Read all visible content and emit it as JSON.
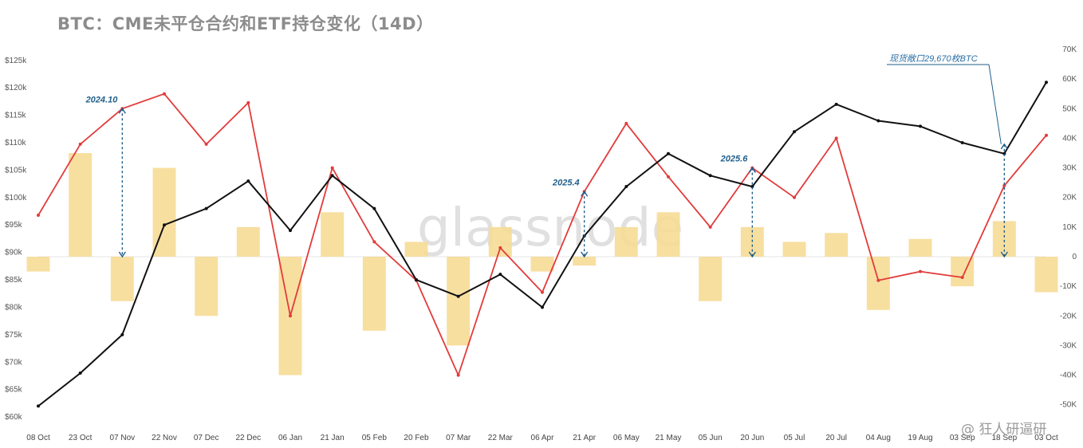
{
  "title": "BTC：CME未平仓合约和ETF持仓变化（14D）",
  "watermark": "glassnode",
  "credit": "@ 狂人研逼研",
  "colors": {
    "price": "#111111",
    "flow": "#e23b3b",
    "bars": "#f6dc96",
    "annotation": "#1f5f8b"
  },
  "chart_data": {
    "type": "line",
    "x_ticks": [
      "08 Oct",
      "23 Oct",
      "07 Nov",
      "22 Nov",
      "07 Dec",
      "22 Dec",
      "06 Jan",
      "21 Jan",
      "05 Feb",
      "20 Feb",
      "07 Mar",
      "22 Mar",
      "06 Apr",
      "21 Apr",
      "06 May",
      "21 May",
      "05 Jun",
      "20 Jun",
      "05 Jul",
      "20 Jul",
      "04 Aug",
      "19 Aug",
      "03 Sep",
      "18 Sep",
      "03 Oct"
    ],
    "y_left": {
      "ticks": [
        "$60k",
        "$65k",
        "$70k",
        "$75k",
        "$80k",
        "$85k",
        "$90k",
        "$95k",
        "$100k",
        "$105k",
        "$110k",
        "$115k",
        "$120k",
        "$125k"
      ],
      "range": [
        59000,
        127000
      ]
    },
    "y_right": {
      "ticks": [
        "-50K",
        "-40K",
        "-30K",
        "-20K",
        "-10K",
        "0",
        "10K",
        "20K",
        "30K",
        "40K",
        "50K",
        "60K",
        "70K"
      ],
      "range": [
        -56000,
        70000
      ]
    },
    "series": [
      {
        "kind": "price",
        "axis": "left",
        "x": [
          0,
          1,
          2,
          3,
          4,
          5,
          6,
          7,
          8,
          9,
          10,
          11,
          12,
          13,
          14,
          15,
          16,
          17,
          18,
          19,
          20,
          21,
          22,
          23,
          24
        ],
        "values": [
          62000,
          68000,
          75000,
          95000,
          98000,
          103000,
          94000,
          104000,
          98000,
          85000,
          82000,
          86000,
          80000,
          93000,
          102000,
          108000,
          104000,
          102000,
          112000,
          117000,
          114000,
          113000,
          110000,
          108000,
          121000
        ]
      },
      {
        "kind": "flow",
        "axis": "right",
        "x": [
          0,
          1,
          2,
          3,
          4,
          5,
          6,
          7,
          8,
          9,
          10,
          11,
          12,
          13,
          14,
          15,
          16,
          17,
          18,
          19,
          20,
          21,
          22,
          23,
          24
        ],
        "values": [
          14000,
          38000,
          50000,
          55000,
          38000,
          52000,
          -20000,
          30000,
          5000,
          -8000,
          -40000,
          3000,
          -12000,
          22000,
          45000,
          27000,
          10000,
          30000,
          20000,
          40000,
          -8000,
          -5000,
          -7000,
          24000,
          41000
        ]
      },
      {
        "kind": "bars",
        "axis": "right",
        "x": [
          0,
          1,
          2,
          3,
          4,
          5,
          6,
          7,
          8,
          9,
          10,
          11,
          12,
          13,
          14,
          15,
          16,
          17,
          18,
          19,
          20,
          21,
          22,
          23,
          24
        ],
        "values": [
          -5000,
          35000,
          -15000,
          30000,
          -20000,
          10000,
          -40000,
          15000,
          -25000,
          5000,
          -30000,
          10000,
          -5000,
          -3000,
          10000,
          15000,
          -15000,
          10000,
          5000,
          8000,
          -18000,
          6000,
          -10000,
          12000,
          -12000
        ]
      }
    ],
    "annotations": [
      {
        "label": "2024.10",
        "x": 2
      },
      {
        "label": "2025.4",
        "x": 13
      },
      {
        "label": "2025.6",
        "x": 17
      },
      {
        "label": "现货敞口29,670枚BTC",
        "x": 23
      }
    ]
  }
}
